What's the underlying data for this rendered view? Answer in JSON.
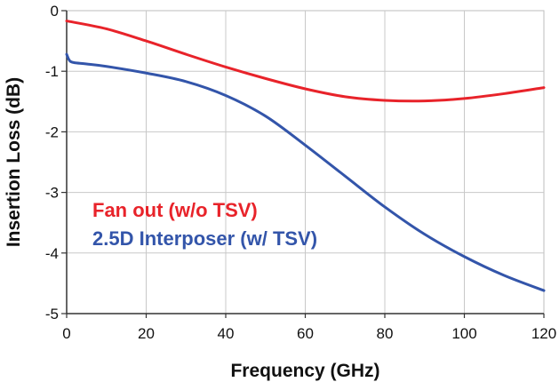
{
  "chart_data": {
    "type": "line",
    "title": "",
    "xlabel": "Frequency (GHz)",
    "ylabel": "Insertion Loss (dB)",
    "xlim": [
      0,
      120
    ],
    "ylim": [
      -5,
      0
    ],
    "xticks": [
      "0",
      "20",
      "40",
      "60",
      "80",
      "100",
      "120"
    ],
    "yticks": [
      "0",
      "-1",
      "-2",
      "-3",
      "-4",
      "-5"
    ],
    "grid": true,
    "legend_position": "inside-left",
    "series": [
      {
        "name": "Fan out (w/o TSV)",
        "color": "#e8232a",
        "x": [
          0,
          10,
          20,
          30,
          40,
          50,
          60,
          70,
          80,
          90,
          100,
          110,
          120
        ],
        "y": [
          -0.17,
          -0.3,
          -0.5,
          -0.72,
          -0.93,
          -1.12,
          -1.29,
          -1.42,
          -1.48,
          -1.49,
          -1.45,
          -1.37,
          -1.27
        ]
      },
      {
        "name": "2.5D Interposer (w/ TSV)",
        "color": "#3355aa",
        "x": [
          0,
          0.5,
          1,
          2,
          5,
          10,
          20,
          30,
          40,
          50,
          60,
          70,
          80,
          90,
          100,
          110,
          120
        ],
        "y": [
          -0.72,
          -0.8,
          -0.84,
          -0.86,
          -0.88,
          -0.92,
          -1.03,
          -1.17,
          -1.4,
          -1.74,
          -2.22,
          -2.73,
          -3.24,
          -3.69,
          -4.06,
          -4.37,
          -4.62
        ]
      }
    ]
  }
}
